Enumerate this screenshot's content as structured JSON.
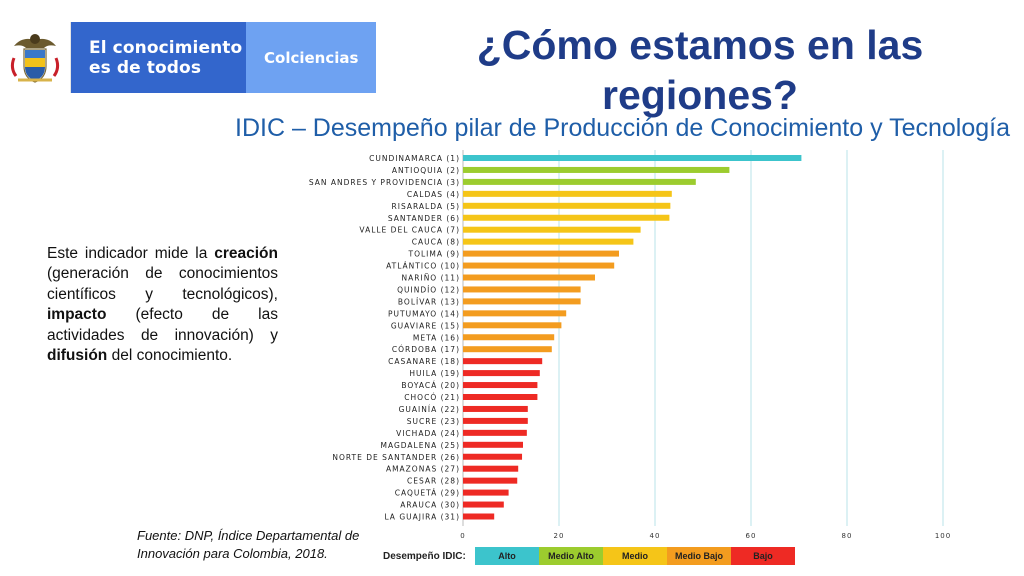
{
  "header": {
    "brand_line1": "El conocimiento",
    "brand_line2": "es de todos",
    "org": "Colciencias"
  },
  "title": "¿Cómo estamos en las regiones?",
  "subtitle": "IDIC – Desempeño pilar de Producción de Conocimiento y Tecnología",
  "description": {
    "p1": "Este indicador mide la ",
    "b1": "creación",
    "p2": " (generación de conocimientos científicos y tecnológicos), ",
    "b2": "impacto",
    "p3": " (efecto de las actividades de innovación) y ",
    "b3": "difusión",
    "p4": " del conocimiento."
  },
  "source": "Fuente: DNP, Índice Departamental de Innovación para Colombia, 2018.",
  "colors": {
    "alto": "#3cc4cc",
    "medio_alto": "#9ccc2e",
    "medio": "#f5c518",
    "medio_bajo": "#f39c1f",
    "bajo": "#ee2a24"
  },
  "legend": {
    "title": "Desempeño IDIC:",
    "items": [
      {
        "label": "Alto",
        "color": "#3cc4cc"
      },
      {
        "label": "Medio Alto",
        "color": "#9ccc2e"
      },
      {
        "label": "Medio",
        "color": "#f5c518"
      },
      {
        "label": "Medio Bajo",
        "color": "#f39c1f"
      },
      {
        "label": "Bajo",
        "color": "#ee2a24"
      }
    ]
  },
  "chart_data": {
    "type": "bar",
    "orientation": "horizontal",
    "xlim": [
      0,
      100
    ],
    "xticks": [
      "0",
      "20",
      "40",
      "60",
      "80",
      "100"
    ],
    "grid": true,
    "categories": [
      "CUNDINAMARCA (1)",
      "ANTIOQUIA (2)",
      "SAN ANDRES Y PROVIDENCIA (3)",
      "CALDAS (4)",
      "RISARALDA (5)",
      "SANTANDER (6)",
      "VALLE DEL CAUCA (7)",
      "CAUCA (8)",
      "TOLIMA (9)",
      "ATLÁNTICO (10)",
      "NARIÑO (11)",
      "QUINDÍO (12)",
      "BOLÍVAR (13)",
      "PUTUMAYO (14)",
      "GUAVIARE (15)",
      "META (16)",
      "CÓRDOBA (17)",
      "CASANARE (18)",
      "HUILA (19)",
      "BOYACÁ (20)",
      "CHOCÓ (21)",
      "GUAINÍA (22)",
      "SUCRE (23)",
      "VICHADA (24)",
      "MAGDALENA (25)",
      "NORTE DE SANTANDER (26)",
      "AMAZONAS (27)",
      "CESAR (28)",
      "CAQUETÁ (29)",
      "ARAUCA (30)",
      "LA GUAJIRA (31)"
    ],
    "values": [
      70.5,
      55.5,
      48.5,
      43.5,
      43.2,
      43.0,
      37.0,
      35.5,
      32.5,
      31.5,
      27.5,
      24.5,
      24.5,
      21.5,
      20.5,
      19.0,
      18.5,
      16.5,
      16.0,
      15.5,
      15.5,
      13.5,
      13.5,
      13.3,
      12.5,
      12.3,
      11.5,
      11.3,
      9.5,
      8.5,
      6.5
    ],
    "levels": [
      "alto",
      "medio_alto",
      "medio_alto",
      "medio",
      "medio",
      "medio",
      "medio",
      "medio",
      "medio_bajo",
      "medio_bajo",
      "medio_bajo",
      "medio_bajo",
      "medio_bajo",
      "medio_bajo",
      "medio_bajo",
      "medio_bajo",
      "medio_bajo",
      "bajo",
      "bajo",
      "bajo",
      "bajo",
      "bajo",
      "bajo",
      "bajo",
      "bajo",
      "bajo",
      "bajo",
      "bajo",
      "bajo",
      "bajo",
      "bajo"
    ]
  }
}
